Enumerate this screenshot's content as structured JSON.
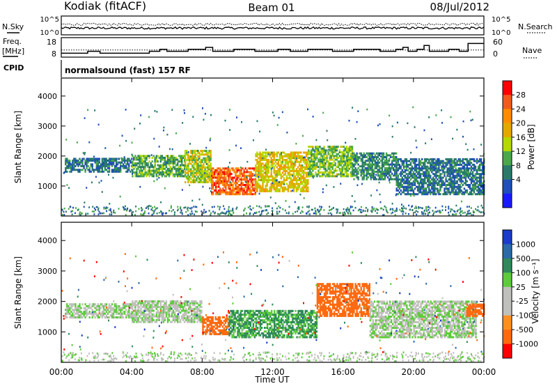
{
  "header": {
    "station": "Kodiak (fitACF)",
    "beam": "Beam 01",
    "date": "08/Jul/2012"
  },
  "status_panel": {
    "left_labels": {
      "nsky": "N.Sky",
      "freq_line1": "Freq.",
      "freq_line2": "[MHz]",
      "cpid": "CPID"
    },
    "right_labels": {
      "nsearch": "N.Search",
      "nave": "Nave"
    },
    "noise_ticks": [
      "10^5",
      "10^0"
    ],
    "freq_ticks": [
      "18",
      "8"
    ],
    "nave_ticks": [
      "60",
      "0"
    ],
    "program": "normalsound (fast) 157 RF"
  },
  "x_axis": {
    "title": "Time UT",
    "ticks": [
      "00:00",
      "04:00",
      "08:00",
      "12:00",
      "16:00",
      "20:00",
      "00:00"
    ]
  },
  "y_axis": {
    "title": "Slant Range [km]",
    "ticks": [
      "4000",
      "3000",
      "2000",
      "1000"
    ]
  },
  "colorbars": {
    "power": {
      "title": "Power [dB]",
      "labels": [
        "28",
        "24",
        "20",
        "16",
        "12",
        "8",
        "4"
      ],
      "colors": [
        "#ff0000",
        "#f05a1e",
        "#ff8c00",
        "#e6a800",
        "#b4d800",
        "#4aa84a",
        "#2a7a6a",
        "#1f4fb8",
        "#1a1aff"
      ]
    },
    "velocity": {
      "title": "Velocity [m s⁻¹]",
      "labels": [
        "1000",
        "500",
        "100",
        "25",
        "-25",
        "-100",
        "-500",
        "-1000"
      ],
      "colors": [
        "#1a3cc8",
        "#2a6aa8",
        "#2e8a5a",
        "#5ccc3a",
        "#c0c0bc",
        "#c0c0bc",
        "#ff9020",
        "#ff6a10",
        "#ff0000"
      ]
    }
  },
  "chart_data": [
    {
      "type": "line",
      "name": "status-noise",
      "x_range": [
        0,
        24
      ],
      "y_ticks": [
        "10^0",
        "10^5"
      ],
      "series": [
        {
          "name": "N.Sky",
          "style": "solid",
          "level": [
            0.3,
            0.42
          ]
        },
        {
          "name": "N.Search",
          "style": "dotted",
          "level": [
            0.5,
            0.62
          ]
        }
      ]
    },
    {
      "type": "line",
      "name": "status-frequency-nave",
      "x_range": [
        0,
        24
      ],
      "series": [
        {
          "name": "Freq. [MHz]",
          "style": "step",
          "ylim": [
            8,
            18
          ],
          "points": [
            [
              0,
              10
            ],
            [
              1.5,
              11
            ],
            [
              2.2,
              10
            ],
            [
              5.0,
              11
            ],
            [
              5.6,
              12
            ],
            [
              6.0,
              11
            ],
            [
              7.2,
              12
            ],
            [
              8.2,
              13
            ],
            [
              8.6,
              11
            ],
            [
              9.8,
              12
            ],
            [
              11.0,
              11
            ],
            [
              12.3,
              12
            ],
            [
              13.0,
              11
            ],
            [
              14.0,
              12
            ],
            [
              15.4,
              11
            ],
            [
              16.6,
              12
            ],
            [
              18.1,
              11
            ],
            [
              19.0,
              12
            ],
            [
              19.4,
              13
            ],
            [
              19.7,
              11
            ],
            [
              20.2,
              12
            ],
            [
              20.6,
              14
            ],
            [
              20.9,
              11
            ],
            [
              22.0,
              12
            ],
            [
              22.6,
              11
            ],
            [
              23.1,
              15
            ],
            [
              23.7,
              15
            ],
            [
              24,
              15
            ]
          ]
        },
        {
          "name": "Nave",
          "style": "dotted",
          "ylim": [
            0,
            60
          ],
          "level": 22
        }
      ]
    },
    {
      "type": "heatmap",
      "name": "power",
      "x_range": [
        0,
        24
      ],
      "xlabel": "Time UT",
      "ylabel": "Slant Range [km]",
      "ylim": [
        0,
        4600
      ],
      "value_label": "Power [dB]",
      "value_range": [
        0,
        32
      ],
      "echo_bands": [
        {
          "t": [
            0.2,
            4.0
          ],
          "range": [
            1450,
            1900
          ],
          "value": 8
        },
        {
          "t": [
            4.0,
            7.0
          ],
          "range": [
            1300,
            2000
          ],
          "value": 12
        },
        {
          "t": [
            7.0,
            8.5
          ],
          "range": [
            1100,
            2200
          ],
          "value": 16
        },
        {
          "t": [
            8.5,
            11.0
          ],
          "range": [
            700,
            1600
          ],
          "value": 26
        },
        {
          "t": [
            11.0,
            14.0
          ],
          "range": [
            800,
            2100
          ],
          "value": 18
        },
        {
          "t": [
            14.0,
            16.5
          ],
          "range": [
            1300,
            2300
          ],
          "value": 14
        },
        {
          "t": [
            16.5,
            19.0
          ],
          "range": [
            1200,
            2100
          ],
          "value": 10
        },
        {
          "t": [
            19.0,
            24.0
          ],
          "range": [
            700,
            1900
          ],
          "value": 8
        }
      ]
    },
    {
      "type": "heatmap",
      "name": "velocity",
      "x_range": [
        0,
        24
      ],
      "xlabel": "Time UT",
      "ylabel": "Slant Range [km]",
      "ylim": [
        0,
        4600
      ],
      "value_label": "Velocity [m s⁻¹]",
      "value_range": [
        -1000,
        1000
      ],
      "echo_bands": [
        {
          "t": [
            0.2,
            4.0
          ],
          "range": [
            1450,
            1900
          ],
          "value": 0
        },
        {
          "t": [
            4.0,
            8.0
          ],
          "range": [
            1300,
            2000
          ],
          "value": 0
        },
        {
          "t": [
            8.0,
            9.5
          ],
          "range": [
            900,
            1500
          ],
          "value": -300
        },
        {
          "t": [
            9.5,
            14.5
          ],
          "range": [
            800,
            1700
          ],
          "value": 120
        },
        {
          "t": [
            14.5,
            17.5
          ],
          "range": [
            1500,
            2600
          ],
          "value": -300
        },
        {
          "t": [
            17.5,
            23.5
          ],
          "range": [
            800,
            2000
          ],
          "value": 0
        },
        {
          "t": [
            23.0,
            24.0
          ],
          "range": [
            1500,
            1900
          ],
          "value": -300
        }
      ]
    }
  ]
}
